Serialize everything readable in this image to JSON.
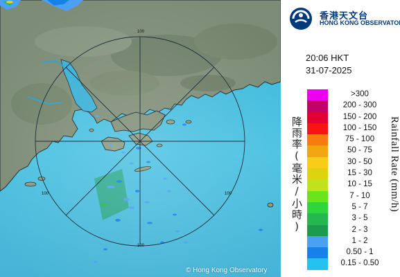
{
  "logo": {
    "title_cn": "香港天文台",
    "title_en": "HONG KONG OBSERVATORY"
  },
  "time_label": "20:06 HKT",
  "date_label": "31-07-2025",
  "legend": {
    "label_cn": "降雨率(毫米/小時)",
    "label_en": "Rainfall Rate (mm/h)",
    "items": [
      {
        "label": ">300",
        "color": "#ee00ee"
      },
      {
        "label": "200 - 300",
        "color": "#c4006a"
      },
      {
        "label": "150 - 200",
        "color": "#e10030"
      },
      {
        "label": "100 - 150",
        "color": "#f81414"
      },
      {
        "label": "75 - 100",
        "color": "#f57c0d"
      },
      {
        "label": "50 - 75",
        "color": "#f0a711"
      },
      {
        "label": "30 - 50",
        "color": "#f7cc1a"
      },
      {
        "label": "15 - 30",
        "color": "#ddd311"
      },
      {
        "label": "10 - 15",
        "color": "#bfe21d"
      },
      {
        "label": "7 - 10",
        "color": "#6ae51d"
      },
      {
        "label": "5 - 7",
        "color": "#2fd63b"
      },
      {
        "label": "3 - 5",
        "color": "#25b84f"
      },
      {
        "label": "2 - 3",
        "color": "#1c9a4d"
      },
      {
        "label": "1 - 2",
        "color": "#4aa0f3"
      },
      {
        "label": "0.50 - 1",
        "color": "#1581e9"
      },
      {
        "label": "0.15 - 0.50",
        "color": "#24c2ee"
      }
    ]
  },
  "map": {
    "range_ring_labels": [
      "100",
      "100",
      "100",
      "100"
    ],
    "credit": "© Hong Kong Observatory"
  }
}
